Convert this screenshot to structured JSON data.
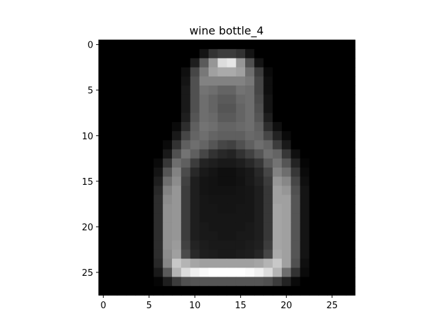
{
  "chart_data": {
    "type": "heatmap",
    "title": "wine bottle_4",
    "colormap": "gray",
    "rows": 28,
    "cols": 28,
    "xlabel": "",
    "ylabel": "",
    "xlim": [
      -0.5,
      27.5
    ],
    "ylim": [
      27.5,
      -0.5
    ],
    "x_ticks": [
      0,
      5,
      10,
      15,
      20,
      25
    ],
    "y_ticks": [
      0,
      5,
      10,
      15,
      20,
      25
    ],
    "value_range": [
      0,
      255
    ],
    "values": [
      [
        0,
        0,
        0,
        0,
        0,
        0,
        0,
        0,
        0,
        0,
        0,
        0,
        0,
        0,
        0,
        0,
        0,
        0,
        0,
        0,
        0,
        0,
        0,
        0,
        0,
        0,
        0,
        0
      ],
      [
        0,
        0,
        0,
        0,
        0,
        0,
        0,
        0,
        0,
        0,
        0,
        20,
        50,
        60,
        60,
        50,
        20,
        0,
        0,
        0,
        0,
        0,
        0,
        0,
        0,
        0,
        0,
        0
      ],
      [
        0,
        0,
        0,
        0,
        0,
        0,
        0,
        0,
        0,
        0,
        30,
        90,
        150,
        220,
        230,
        150,
        80,
        20,
        0,
        0,
        0,
        0,
        0,
        0,
        0,
        0,
        0,
        0
      ],
      [
        0,
        0,
        0,
        0,
        0,
        0,
        0,
        0,
        0,
        15,
        70,
        120,
        160,
        170,
        170,
        160,
        110,
        60,
        10,
        0,
        0,
        0,
        0,
        0,
        0,
        0,
        0,
        0
      ],
      [
        0,
        0,
        0,
        0,
        0,
        0,
        0,
        0,
        0,
        20,
        80,
        130,
        130,
        130,
        130,
        130,
        120,
        70,
        15,
        0,
        0,
        0,
        0,
        0,
        0,
        0,
        0,
        0
      ],
      [
        0,
        0,
        0,
        0,
        0,
        0,
        0,
        0,
        0,
        25,
        80,
        115,
        110,
        100,
        100,
        115,
        110,
        70,
        15,
        0,
        0,
        0,
        0,
        0,
        0,
        0,
        0,
        0
      ],
      [
        0,
        0,
        0,
        0,
        0,
        0,
        0,
        0,
        0,
        25,
        80,
        110,
        100,
        90,
        90,
        105,
        110,
        75,
        20,
        0,
        0,
        0,
        0,
        0,
        0,
        0,
        0,
        0
      ],
      [
        0,
        0,
        0,
        0,
        0,
        0,
        0,
        0,
        0,
        25,
        80,
        110,
        100,
        85,
        85,
        100,
        110,
        80,
        20,
        0,
        0,
        0,
        0,
        0,
        0,
        0,
        0,
        0
      ],
      [
        0,
        0,
        0,
        0,
        0,
        0,
        0,
        0,
        0,
        30,
        85,
        110,
        105,
        90,
        90,
        100,
        110,
        85,
        30,
        0,
        0,
        0,
        0,
        0,
        0,
        0,
        0,
        0
      ],
      [
        0,
        0,
        0,
        0,
        0,
        0,
        0,
        0,
        10,
        45,
        95,
        115,
        110,
        100,
        100,
        105,
        110,
        95,
        45,
        15,
        0,
        0,
        0,
        0,
        0,
        0,
        0,
        0
      ],
      [
        0,
        0,
        0,
        0,
        0,
        0,
        0,
        0,
        25,
        70,
        100,
        110,
        100,
        95,
        95,
        95,
        105,
        100,
        70,
        35,
        10,
        0,
        0,
        0,
        0,
        0,
        0,
        0
      ],
      [
        0,
        0,
        0,
        0,
        0,
        0,
        0,
        10,
        50,
        95,
        110,
        100,
        85,
        70,
        65,
        80,
        95,
        110,
        100,
        60,
        25,
        0,
        0,
        0,
        0,
        0,
        0,
        0
      ],
      [
        0,
        0,
        0,
        0,
        0,
        0,
        0,
        25,
        80,
        115,
        95,
        70,
        50,
        40,
        35,
        50,
        65,
        85,
        110,
        100,
        55,
        15,
        0,
        0,
        0,
        0,
        0,
        0
      ],
      [
        0,
        0,
        0,
        0,
        0,
        0,
        10,
        55,
        110,
        95,
        60,
        35,
        30,
        25,
        25,
        30,
        40,
        55,
        90,
        115,
        85,
        35,
        5,
        0,
        0,
        0,
        0,
        0
      ],
      [
        0,
        0,
        0,
        0,
        0,
        0,
        20,
        85,
        130,
        75,
        40,
        25,
        20,
        15,
        15,
        20,
        25,
        40,
        70,
        130,
        110,
        55,
        10,
        0,
        0,
        0,
        0,
        0
      ],
      [
        0,
        0,
        0,
        0,
        0,
        0,
        30,
        110,
        140,
        65,
        30,
        20,
        18,
        15,
        15,
        18,
        25,
        35,
        60,
        150,
        135,
        70,
        15,
        0,
        0,
        0,
        0,
        0
      ],
      [
        0,
        0,
        0,
        0,
        0,
        0,
        40,
        130,
        150,
        60,
        30,
        20,
        18,
        18,
        18,
        20,
        22,
        30,
        55,
        160,
        150,
        80,
        20,
        0,
        0,
        0,
        0,
        0
      ],
      [
        0,
        0,
        0,
        0,
        0,
        0,
        45,
        140,
        150,
        60,
        30,
        22,
        20,
        20,
        20,
        20,
        22,
        30,
        55,
        160,
        160,
        85,
        20,
        0,
        0,
        0,
        0,
        0
      ],
      [
        0,
        0,
        0,
        0,
        0,
        0,
        45,
        145,
        150,
        60,
        30,
        22,
        22,
        20,
        20,
        22,
        22,
        30,
        55,
        165,
        160,
        85,
        20,
        0,
        0,
        0,
        0,
        0
      ],
      [
        0,
        0,
        0,
        0,
        0,
        0,
        45,
        145,
        150,
        60,
        30,
        22,
        22,
        22,
        22,
        22,
        22,
        30,
        55,
        165,
        160,
        85,
        20,
        0,
        0,
        0,
        0,
        0
      ],
      [
        0,
        0,
        0,
        0,
        0,
        0,
        45,
        145,
        150,
        60,
        30,
        25,
        22,
        22,
        22,
        22,
        25,
        30,
        55,
        165,
        160,
        85,
        20,
        0,
        0,
        0,
        0,
        0
      ],
      [
        0,
        0,
        0,
        0,
        0,
        0,
        45,
        145,
        150,
        60,
        30,
        25,
        25,
        22,
        22,
        25,
        25,
        30,
        55,
        165,
        160,
        85,
        20,
        0,
        0,
        0,
        0,
        0
      ],
      [
        0,
        0,
        0,
        0,
        0,
        0,
        45,
        145,
        155,
        65,
        35,
        28,
        25,
        25,
        25,
        25,
        28,
        32,
        60,
        165,
        160,
        85,
        20,
        0,
        0,
        0,
        0,
        0
      ],
      [
        0,
        0,
        0,
        0,
        0,
        0,
        45,
        140,
        160,
        75,
        40,
        30,
        28,
        25,
        25,
        28,
        30,
        38,
        70,
        170,
        160,
        85,
        20,
        0,
        0,
        0,
        0,
        0
      ],
      [
        0,
        0,
        0,
        0,
        0,
        0,
        40,
        135,
        200,
        180,
        165,
        160,
        160,
        160,
        160,
        160,
        160,
        165,
        180,
        200,
        160,
        80,
        15,
        0,
        0,
        0,
        0,
        0
      ],
      [
        0,
        0,
        0,
        0,
        0,
        0,
        25,
        90,
        180,
        220,
        240,
        250,
        255,
        255,
        255,
        255,
        250,
        240,
        220,
        180,
        110,
        50,
        10,
        0,
        0,
        0,
        0,
        0
      ],
      [
        0,
        0,
        0,
        0,
        0,
        0,
        5,
        30,
        60,
        80,
        85,
        85,
        85,
        85,
        85,
        85,
        85,
        85,
        80,
        60,
        35,
        10,
        0,
        0,
        0,
        0,
        0,
        0
      ],
      [
        0,
        0,
        0,
        0,
        0,
        0,
        0,
        0,
        0,
        0,
        0,
        0,
        0,
        0,
        0,
        0,
        0,
        0,
        0,
        0,
        0,
        0,
        0,
        0,
        0,
        0,
        0,
        0
      ]
    ]
  }
}
